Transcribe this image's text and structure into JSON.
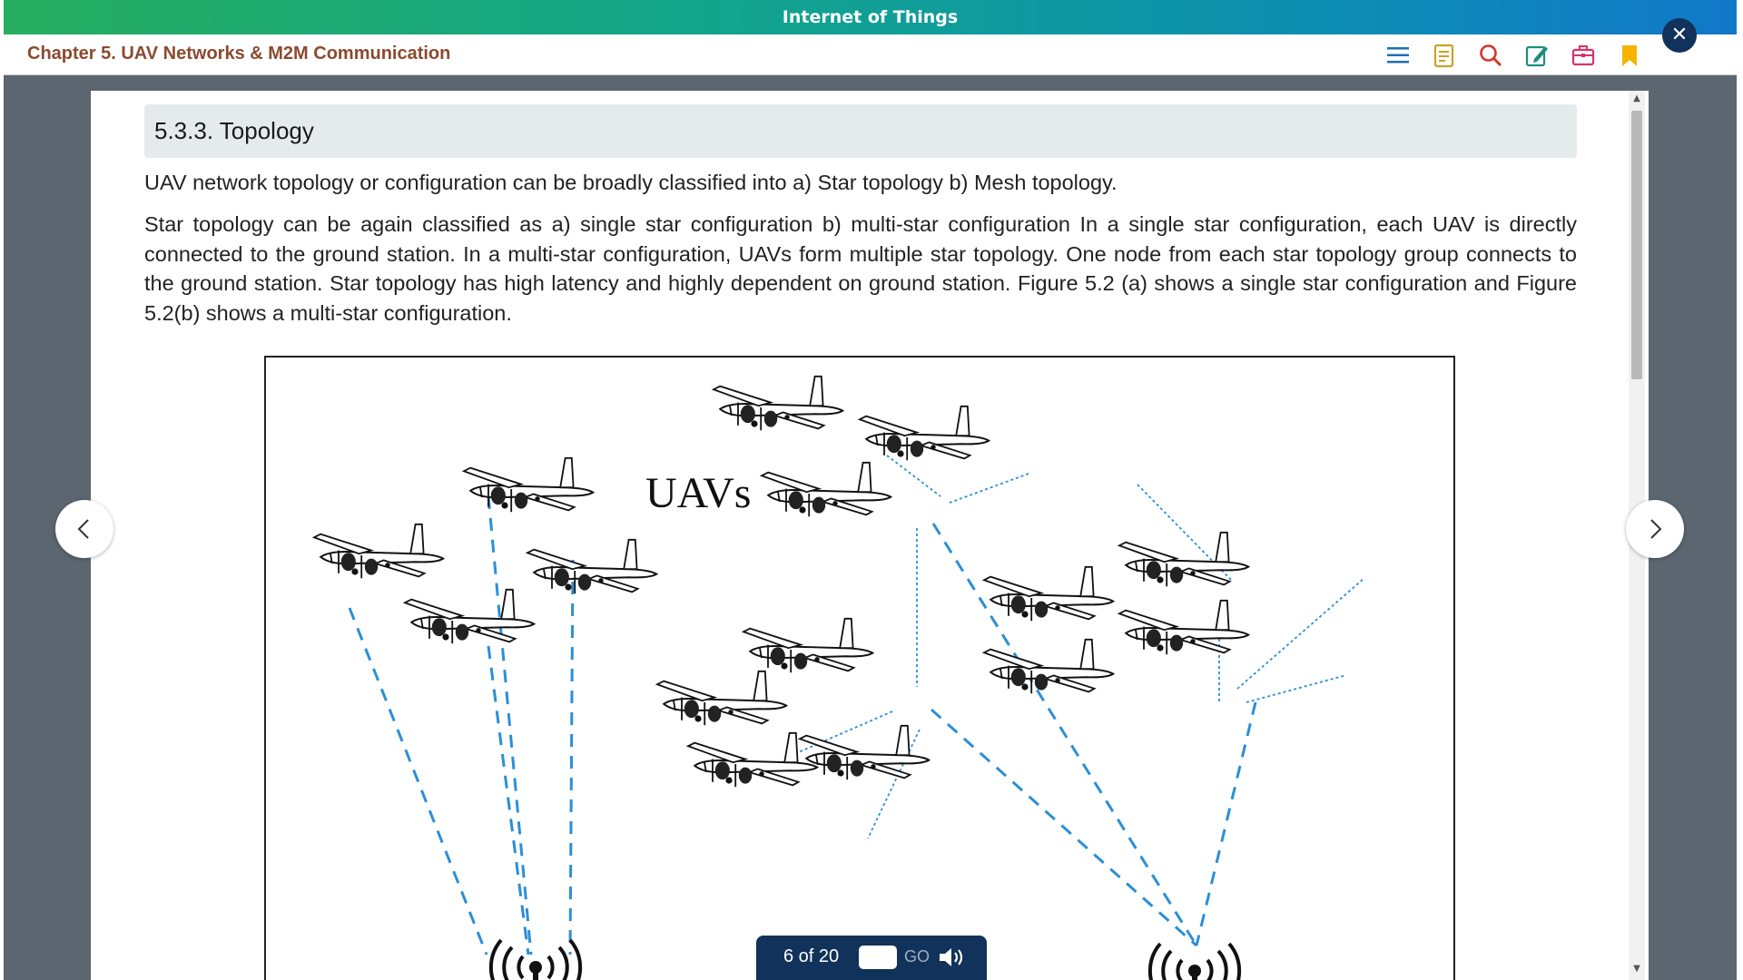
{
  "app": {
    "banner_title": "Internet of Things",
    "chapter_title": "Chapter 5. UAV Networks & M2M Communication"
  },
  "toolbar": {
    "icons": [
      "menu-icon",
      "notes-icon",
      "search-icon",
      "edit-icon",
      "briefcase-icon",
      "bookmark-icon"
    ],
    "close_label": "✕"
  },
  "section": {
    "title": "5.3.3. Topology",
    "paragraphs": [
      "UAV network topology or configuration can be broadly classified into a) Star topology b) Mesh topology.",
      "Star topology can be again classified as a) single star configuration b) multi-star configuration In a single star configuration, each UAV is directly connected to the ground station. In a multi-star configuration, UAVs form multiple star topology. One node from each star topology group connects to the ground station. Star topology has high latency and highly dependent on ground station. Figure 5.2 (a) shows a single star configuration and Figure 5.2(b) shows a multi-star configuration."
    ]
  },
  "figure": {
    "label": "UAVs"
  },
  "navigation": {
    "prev_label": "‹",
    "next_label": "›",
    "page_status": "6 of 20",
    "page_input_value": "",
    "go_label": "GO"
  },
  "colors": {
    "banner_start": "#27ae60",
    "banner_end": "#1178c9",
    "chapter_title": "#8b4a2f",
    "frame": "#5b6670",
    "pager": "#11325a",
    "link_line": "#2b8fd6"
  }
}
